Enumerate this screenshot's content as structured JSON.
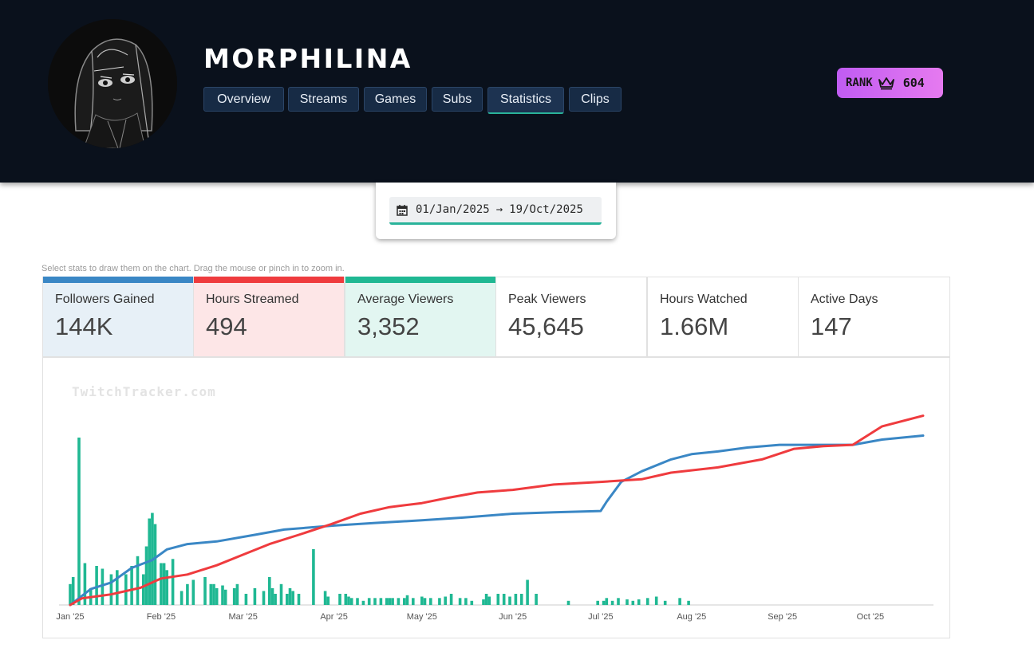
{
  "channel": {
    "name": "MORPHILINA"
  },
  "nav": [
    {
      "label": "Overview",
      "active": false
    },
    {
      "label": "Streams",
      "active": false
    },
    {
      "label": "Games",
      "active": false
    },
    {
      "label": "Subs",
      "active": false
    },
    {
      "label": "Statistics",
      "active": true
    },
    {
      "label": "Clips",
      "active": false
    }
  ],
  "rank": {
    "label": "RANK",
    "value": "604",
    "icon": "crown-icon"
  },
  "date_range": {
    "start": "01/Jan/2025",
    "arrow": "→",
    "end": "19/Oct/2025",
    "icon": "calendar-icon"
  },
  "hint": "Select stats to draw them on the chart. Drag the mouse or pinch in to zoom in.",
  "stats": [
    {
      "label": "Followers Gained",
      "value": "144K",
      "selected": true,
      "color": "#3a87c5",
      "bg": "#e7f0f7"
    },
    {
      "label": "Hours Streamed",
      "value": "494",
      "selected": true,
      "color": "#ef3b3e",
      "bg": "#fde6e7"
    },
    {
      "label": "Average Viewers",
      "value": "3,352",
      "selected": true,
      "color": "#20b893",
      "bg": "#e2f6f1"
    },
    {
      "label": "Peak Viewers",
      "value": "45,645",
      "selected": false
    },
    {
      "label": "Hours Watched",
      "value": "1.66M",
      "selected": false
    },
    {
      "label": "Active Days",
      "value": "147",
      "selected": false
    }
  ],
  "watermark": "TwitchTracker.com",
  "chart_data": {
    "type": "line",
    "x_ticks": [
      "Jan '25",
      "Feb '25",
      "Mar '25",
      "Apr '25",
      "May '25",
      "Jun '25",
      "Jul '25",
      "Aug '25",
      "Sep '25",
      "Oct '25"
    ],
    "xlim": [
      "2025-01-01",
      "2025-10-19"
    ],
    "grid": false,
    "legend": "stat cards above the chart",
    "series": [
      {
        "name": "Followers Gained",
        "kind": "cumulative-line",
        "color": "#3a87c5",
        "points": [
          [
            "2025-01-01",
            0
          ],
          [
            "2025-01-08",
            12
          ],
          [
            "2025-01-15",
            17
          ],
          [
            "2025-01-22",
            28
          ],
          [
            "2025-01-29",
            34
          ],
          [
            "2025-02-03",
            42
          ],
          [
            "2025-02-10",
            46
          ],
          [
            "2025-02-20",
            48
          ],
          [
            "2025-03-05",
            53
          ],
          [
            "2025-03-15",
            57
          ],
          [
            "2025-04-01",
            60
          ],
          [
            "2025-04-15",
            62
          ],
          [
            "2025-05-01",
            64
          ],
          [
            "2025-05-15",
            66
          ],
          [
            "2025-06-01",
            69
          ],
          [
            "2025-06-15",
            70
          ],
          [
            "2025-07-01",
            71
          ],
          [
            "2025-07-03",
            78
          ],
          [
            "2025-07-08",
            93
          ],
          [
            "2025-07-15",
            101
          ],
          [
            "2025-07-25",
            110
          ],
          [
            "2025-08-01",
            114
          ],
          [
            "2025-08-10",
            116
          ],
          [
            "2025-08-20",
            119
          ],
          [
            "2025-08-31",
            121
          ],
          [
            "2025-09-15",
            121
          ],
          [
            "2025-09-25",
            121
          ],
          [
            "2025-10-05",
            125
          ],
          [
            "2025-10-19",
            128
          ]
        ]
      },
      {
        "name": "Hours Streamed",
        "kind": "cumulative-line",
        "color": "#ef3b3e",
        "points": [
          [
            "2025-01-01",
            0
          ],
          [
            "2025-01-05",
            5
          ],
          [
            "2025-01-15",
            8
          ],
          [
            "2025-01-25",
            13
          ],
          [
            "2025-02-01",
            20
          ],
          [
            "2025-02-10",
            23
          ],
          [
            "2025-02-20",
            30
          ],
          [
            "2025-03-01",
            38
          ],
          [
            "2025-03-10",
            46
          ],
          [
            "2025-03-20",
            53
          ],
          [
            "2025-03-31",
            61
          ],
          [
            "2025-04-10",
            69
          ],
          [
            "2025-04-20",
            74
          ],
          [
            "2025-05-01",
            77
          ],
          [
            "2025-05-10",
            81
          ],
          [
            "2025-05-20",
            85
          ],
          [
            "2025-06-01",
            87
          ],
          [
            "2025-06-15",
            91
          ],
          [
            "2025-07-01",
            93
          ],
          [
            "2025-07-15",
            95
          ],
          [
            "2025-07-25",
            100
          ],
          [
            "2025-08-10",
            104
          ],
          [
            "2025-08-25",
            110
          ],
          [
            "2025-09-05",
            118
          ],
          [
            "2025-09-15",
            120
          ],
          [
            "2025-09-25",
            121
          ],
          [
            "2025-10-05",
            135
          ],
          [
            "2025-10-19",
            143
          ]
        ]
      },
      {
        "name": "Average Viewers",
        "kind": "daily-bars",
        "color": "#20b893",
        "points": [
          [
            "2025-01-01",
            15
          ],
          [
            "2025-01-02",
            20
          ],
          [
            "2025-01-04",
            120
          ],
          [
            "2025-01-06",
            30
          ],
          [
            "2025-01-08",
            12
          ],
          [
            "2025-01-10",
            28
          ],
          [
            "2025-01-12",
            26
          ],
          [
            "2025-01-15",
            22
          ],
          [
            "2025-01-17",
            25
          ],
          [
            "2025-01-20",
            22
          ],
          [
            "2025-01-22",
            28
          ],
          [
            "2025-01-24",
            35
          ],
          [
            "2025-01-26",
            22
          ],
          [
            "2025-01-27",
            42
          ],
          [
            "2025-01-28",
            62
          ],
          [
            "2025-01-29",
            66
          ],
          [
            "2025-01-30",
            58
          ],
          [
            "2025-02-01",
            30
          ],
          [
            "2025-02-02",
            30
          ],
          [
            "2025-02-03",
            25
          ],
          [
            "2025-02-05",
            33
          ],
          [
            "2025-02-08",
            10
          ],
          [
            "2025-02-10",
            15
          ],
          [
            "2025-02-12",
            18
          ],
          [
            "2025-02-16",
            20
          ],
          [
            "2025-02-18",
            15
          ],
          [
            "2025-02-19",
            15
          ],
          [
            "2025-02-20",
            12
          ],
          [
            "2025-02-22",
            14
          ],
          [
            "2025-02-23",
            11
          ],
          [
            "2025-02-26",
            12
          ],
          [
            "2025-02-27",
            15
          ],
          [
            "2025-03-02",
            8
          ],
          [
            "2025-03-05",
            12
          ],
          [
            "2025-03-08",
            10
          ],
          [
            "2025-03-10",
            20
          ],
          [
            "2025-03-11",
            12
          ],
          [
            "2025-03-12",
            8
          ],
          [
            "2025-03-14",
            15
          ],
          [
            "2025-03-16",
            8
          ],
          [
            "2025-03-17",
            12
          ],
          [
            "2025-03-18",
            10
          ],
          [
            "2025-03-20",
            8
          ],
          [
            "2025-03-25",
            40
          ],
          [
            "2025-03-29",
            10
          ],
          [
            "2025-03-30",
            6
          ],
          [
            "2025-04-03",
            8
          ],
          [
            "2025-04-05",
            8
          ],
          [
            "2025-04-06",
            6
          ],
          [
            "2025-04-07",
            5
          ],
          [
            "2025-04-09",
            5
          ],
          [
            "2025-04-11",
            3
          ],
          [
            "2025-04-13",
            5
          ],
          [
            "2025-04-15",
            5
          ],
          [
            "2025-04-17",
            5
          ],
          [
            "2025-04-19",
            5
          ],
          [
            "2025-04-20",
            5
          ],
          [
            "2025-04-21",
            5
          ],
          [
            "2025-04-23",
            5
          ],
          [
            "2025-04-25",
            5
          ],
          [
            "2025-04-26",
            7
          ],
          [
            "2025-04-28",
            5
          ],
          [
            "2025-05-01",
            6
          ],
          [
            "2025-05-02",
            5
          ],
          [
            "2025-05-04",
            5
          ],
          [
            "2025-05-07",
            5
          ],
          [
            "2025-05-09",
            6
          ],
          [
            "2025-05-11",
            8
          ],
          [
            "2025-05-14",
            5
          ],
          [
            "2025-05-16",
            5
          ],
          [
            "2025-05-18",
            3
          ],
          [
            "2025-05-22",
            4
          ],
          [
            "2025-05-23",
            8
          ],
          [
            "2025-05-24",
            6
          ],
          [
            "2025-05-27",
            8
          ],
          [
            "2025-05-29",
            8
          ],
          [
            "2025-05-31",
            6
          ],
          [
            "2025-06-02",
            8
          ],
          [
            "2025-06-04",
            8
          ],
          [
            "2025-06-06",
            18
          ],
          [
            "2025-06-09",
            8
          ],
          [
            "2025-06-20",
            3
          ],
          [
            "2025-06-30",
            3
          ],
          [
            "2025-07-02",
            3
          ],
          [
            "2025-07-03",
            5
          ],
          [
            "2025-07-05",
            3
          ],
          [
            "2025-07-07",
            5
          ],
          [
            "2025-07-10",
            4
          ],
          [
            "2025-07-12",
            3
          ],
          [
            "2025-07-14",
            4
          ],
          [
            "2025-07-17",
            5
          ],
          [
            "2025-07-20",
            6
          ],
          [
            "2025-07-23",
            3
          ],
          [
            "2025-07-28",
            5
          ],
          [
            "2025-07-31",
            3
          ]
        ]
      }
    ]
  }
}
